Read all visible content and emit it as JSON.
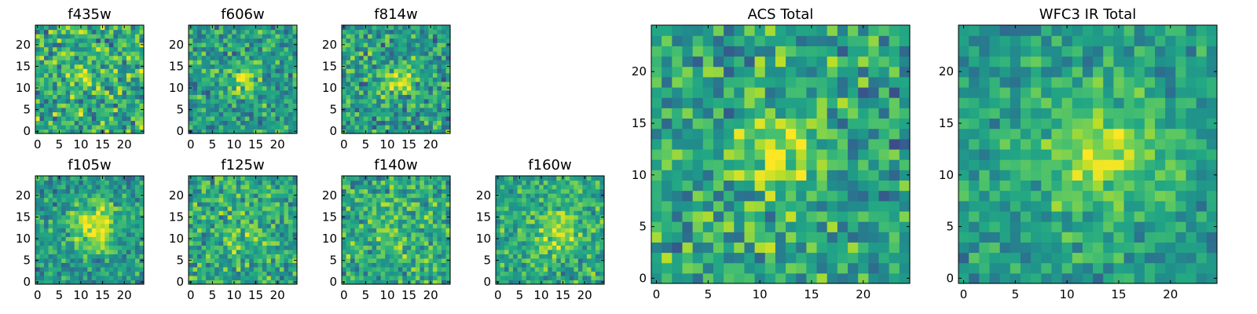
{
  "chart_data": [
    {
      "type": "heatmap",
      "title": "f435w",
      "grid_size": 25,
      "xlim": [
        -0.5,
        24.5
      ],
      "ylim": [
        -0.5,
        24.5
      ],
      "xticks": [
        0,
        5,
        10,
        15,
        20
      ],
      "yticks": [
        0,
        5,
        10,
        15,
        20
      ],
      "colormap": "viridis",
      "peak": {
        "x": 12,
        "y": 12,
        "amplitude": 0.2,
        "sigma": 3.0
      },
      "background": 0.62,
      "noise": 0.25,
      "seed": 11
    },
    {
      "type": "heatmap",
      "title": "f606w",
      "grid_size": 25,
      "xlim": [
        -0.5,
        24.5
      ],
      "ylim": [
        -0.5,
        24.5
      ],
      "xticks": [
        0,
        5,
        10,
        15,
        20
      ],
      "yticks": [
        0,
        5,
        10,
        15,
        20
      ],
      "colormap": "viridis",
      "peak": {
        "x": 12,
        "y": 12,
        "amplitude": 0.3,
        "sigma": 2.5
      },
      "background": 0.55,
      "noise": 0.2,
      "seed": 23
    },
    {
      "type": "heatmap",
      "title": "f814w",
      "grid_size": 25,
      "xlim": [
        -0.5,
        24.5
      ],
      "ylim": [
        -0.5,
        24.5
      ],
      "xticks": [
        0,
        5,
        10,
        15,
        20
      ],
      "yticks": [
        0,
        5,
        10,
        15,
        20
      ],
      "colormap": "viridis",
      "peak": {
        "x": 13,
        "y": 12,
        "amplitude": 0.4,
        "sigma": 2.5
      },
      "background": 0.55,
      "noise": 0.22,
      "seed": 37
    },
    {
      "type": "heatmap",
      "title": "f105w",
      "grid_size": 25,
      "xlim": [
        -0.5,
        24.5
      ],
      "ylim": [
        -0.5,
        24.5
      ],
      "xticks": [
        0,
        5,
        10,
        15,
        20
      ],
      "yticks": [
        0,
        5,
        10,
        15,
        20
      ],
      "colormap": "viridis",
      "peak": {
        "x": 13,
        "y": 13,
        "amplitude": 0.45,
        "sigma": 4.0
      },
      "background": 0.52,
      "noise": 0.18,
      "seed": 41
    },
    {
      "type": "heatmap",
      "title": "f125w",
      "grid_size": 25,
      "xlim": [
        -0.5,
        24.5
      ],
      "ylim": [
        -0.5,
        24.5
      ],
      "xticks": [
        0,
        5,
        10,
        15,
        20
      ],
      "yticks": [
        0,
        5,
        10,
        15,
        20
      ],
      "colormap": "viridis",
      "peak": {
        "x": 12,
        "y": 12,
        "amplitude": 0.1,
        "sigma": 4.0
      },
      "background": 0.6,
      "noise": 0.2,
      "seed": 53
    },
    {
      "type": "heatmap",
      "title": "f140w",
      "grid_size": 25,
      "xlim": [
        -0.5,
        24.5
      ],
      "ylim": [
        -0.5,
        24.5
      ],
      "xticks": [
        0,
        5,
        10,
        15,
        20
      ],
      "yticks": [
        0,
        5,
        10,
        15,
        20
      ],
      "colormap": "viridis",
      "peak": {
        "x": 12,
        "y": 12,
        "amplitude": 0.15,
        "sigma": 4.0
      },
      "background": 0.6,
      "noise": 0.2,
      "seed": 67
    },
    {
      "type": "heatmap",
      "title": "f160w",
      "grid_size": 25,
      "xlim": [
        -0.5,
        24.5
      ],
      "ylim": [
        -0.5,
        24.5
      ],
      "xticks": [
        0,
        5,
        10,
        15,
        20
      ],
      "yticks": [
        0,
        5,
        10,
        15,
        20
      ],
      "colormap": "viridis",
      "peak": {
        "x": 14,
        "y": 12,
        "amplitude": 0.3,
        "sigma": 3.5
      },
      "background": 0.6,
      "noise": 0.18,
      "seed": 79
    },
    {
      "type": "heatmap",
      "title": "ACS Total",
      "grid_size": 25,
      "xlim": [
        -0.5,
        24.5
      ],
      "ylim": [
        -0.5,
        24.5
      ],
      "xticks": [
        0,
        5,
        10,
        15,
        20
      ],
      "yticks": [
        0,
        5,
        10,
        15,
        20
      ],
      "colormap": "viridis",
      "peak": {
        "x": 12,
        "y": 12,
        "amplitude": 0.4,
        "sigma": 2.8
      },
      "background": 0.58,
      "noise": 0.22,
      "seed": 97
    },
    {
      "type": "heatmap",
      "title": "WFC3 IR Total",
      "grid_size": 25,
      "xlim": [
        -0.5,
        24.5
      ],
      "ylim": [
        -0.5,
        24.5
      ],
      "xticks": [
        0,
        5,
        10,
        15,
        20
      ],
      "yticks": [
        0,
        5,
        10,
        15,
        20
      ],
      "colormap": "viridis",
      "peak": {
        "x": 13,
        "y": 12,
        "amplitude": 0.35,
        "sigma": 4.0
      },
      "background": 0.55,
      "noise": 0.15,
      "seed": 131
    }
  ]
}
